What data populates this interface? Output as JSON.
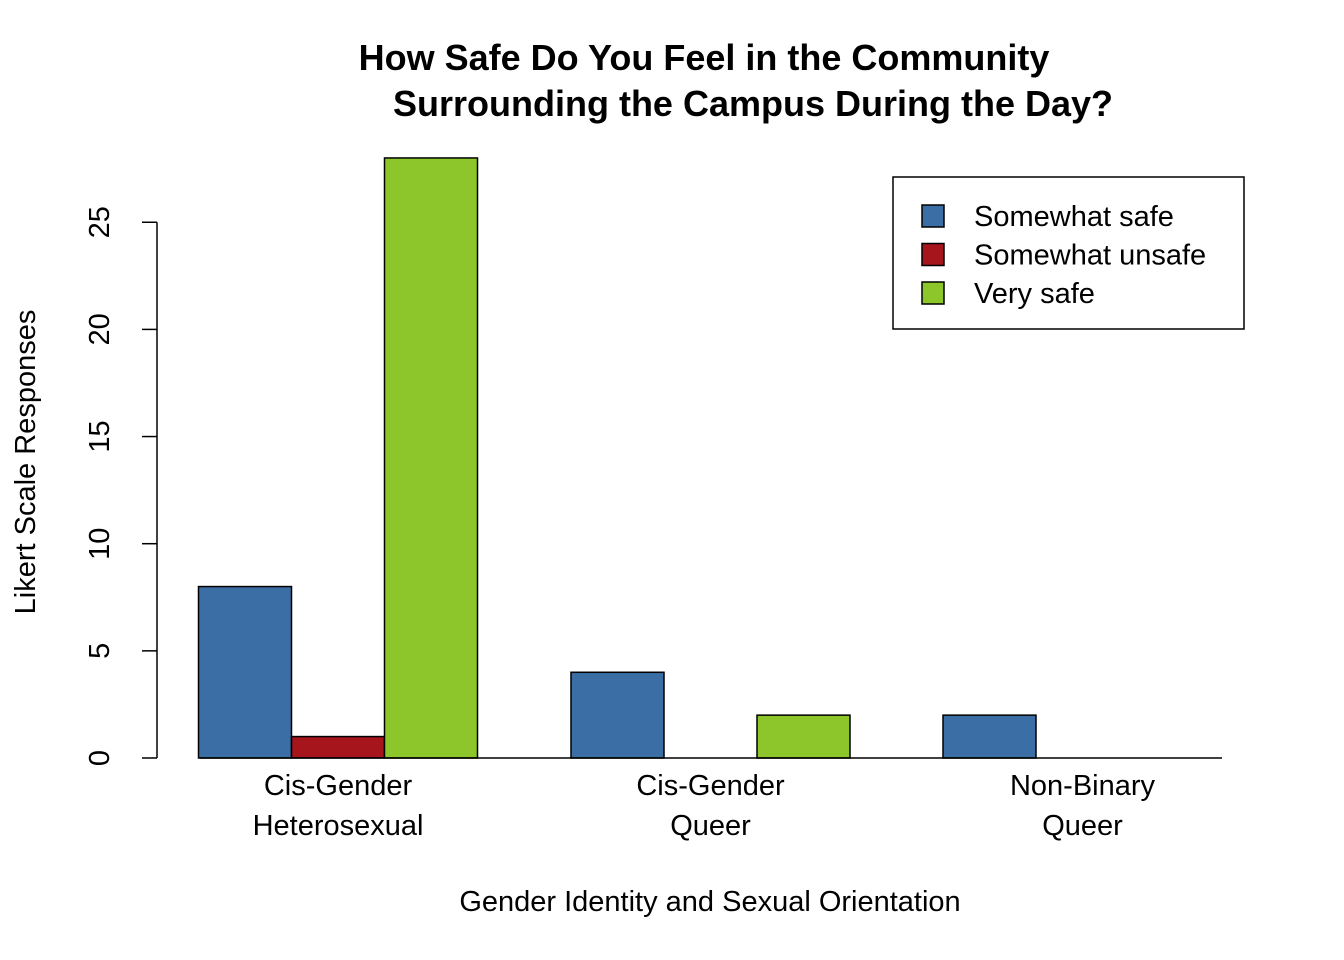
{
  "chart_data": {
    "type": "bar",
    "title_lines": [
      "How Safe Do You Feel in the Community",
      "Surrounding the Campus During the Day?"
    ],
    "xlabel": "Gender Identity and Sexual Orientation",
    "ylabel": "Likert Scale Responses",
    "categories": [
      [
        "Cis-Gender",
        "Heterosexual"
      ],
      [
        "Cis-Gender",
        "Queer"
      ],
      [
        "Non-Binary",
        "Queer"
      ]
    ],
    "series": [
      {
        "name": "Somewhat safe",
        "color": "#3a6ea5",
        "values": [
          8,
          4,
          2
        ]
      },
      {
        "name": "Somewhat unsafe",
        "color": "#a6141c",
        "values": [
          1,
          0,
          0
        ]
      },
      {
        "name": "Very safe",
        "color": "#8dc62b",
        "values": [
          28,
          2,
          0
        ]
      }
    ],
    "yticks": [
      0,
      5,
      10,
      15,
      20,
      25
    ],
    "ylim": [
      0,
      28
    ],
    "legend_position": "top-right",
    "grid": false
  }
}
